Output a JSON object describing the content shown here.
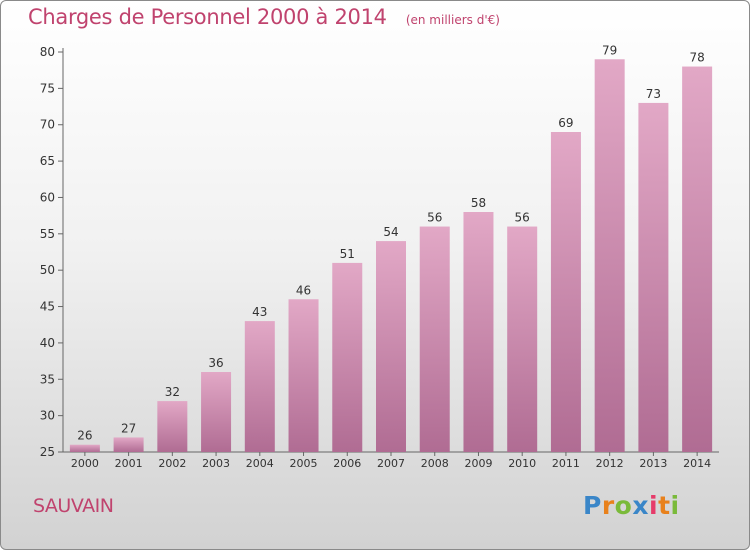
{
  "title": "Charges de Personnel 2000 à 2014",
  "unit_note": "(en milliers d'€)",
  "commune": "SAUVAIN",
  "logo": {
    "letters": [
      "P",
      "r",
      "o",
      "x",
      "i",
      "t",
      "i"
    ],
    "colors": [
      "#3a86c8",
      "#e8811c",
      "#7aba3a",
      "#3a86c8",
      "#e63b6a",
      "#e8811c",
      "#7aba3a"
    ]
  },
  "colors": {
    "bar": "#d78cb1",
    "accent": "#c0436e"
  },
  "chart_data": {
    "type": "bar",
    "title": "Charges de Personnel 2000 à 2014",
    "xlabel": "",
    "ylabel": "",
    "categories": [
      "2000",
      "2001",
      "2002",
      "2003",
      "2004",
      "2005",
      "2006",
      "2007",
      "2008",
      "2009",
      "2010",
      "2011",
      "2012",
      "2013",
      "2014"
    ],
    "values": [
      26,
      27,
      32,
      36,
      43,
      46,
      51,
      54,
      56,
      58,
      56,
      69,
      79,
      73,
      78
    ],
    "ylim": [
      25,
      80
    ],
    "yticks": [
      25,
      30,
      35,
      40,
      45,
      50,
      55,
      60,
      65,
      70,
      75,
      80
    ],
    "grid": false,
    "legend": "none"
  }
}
